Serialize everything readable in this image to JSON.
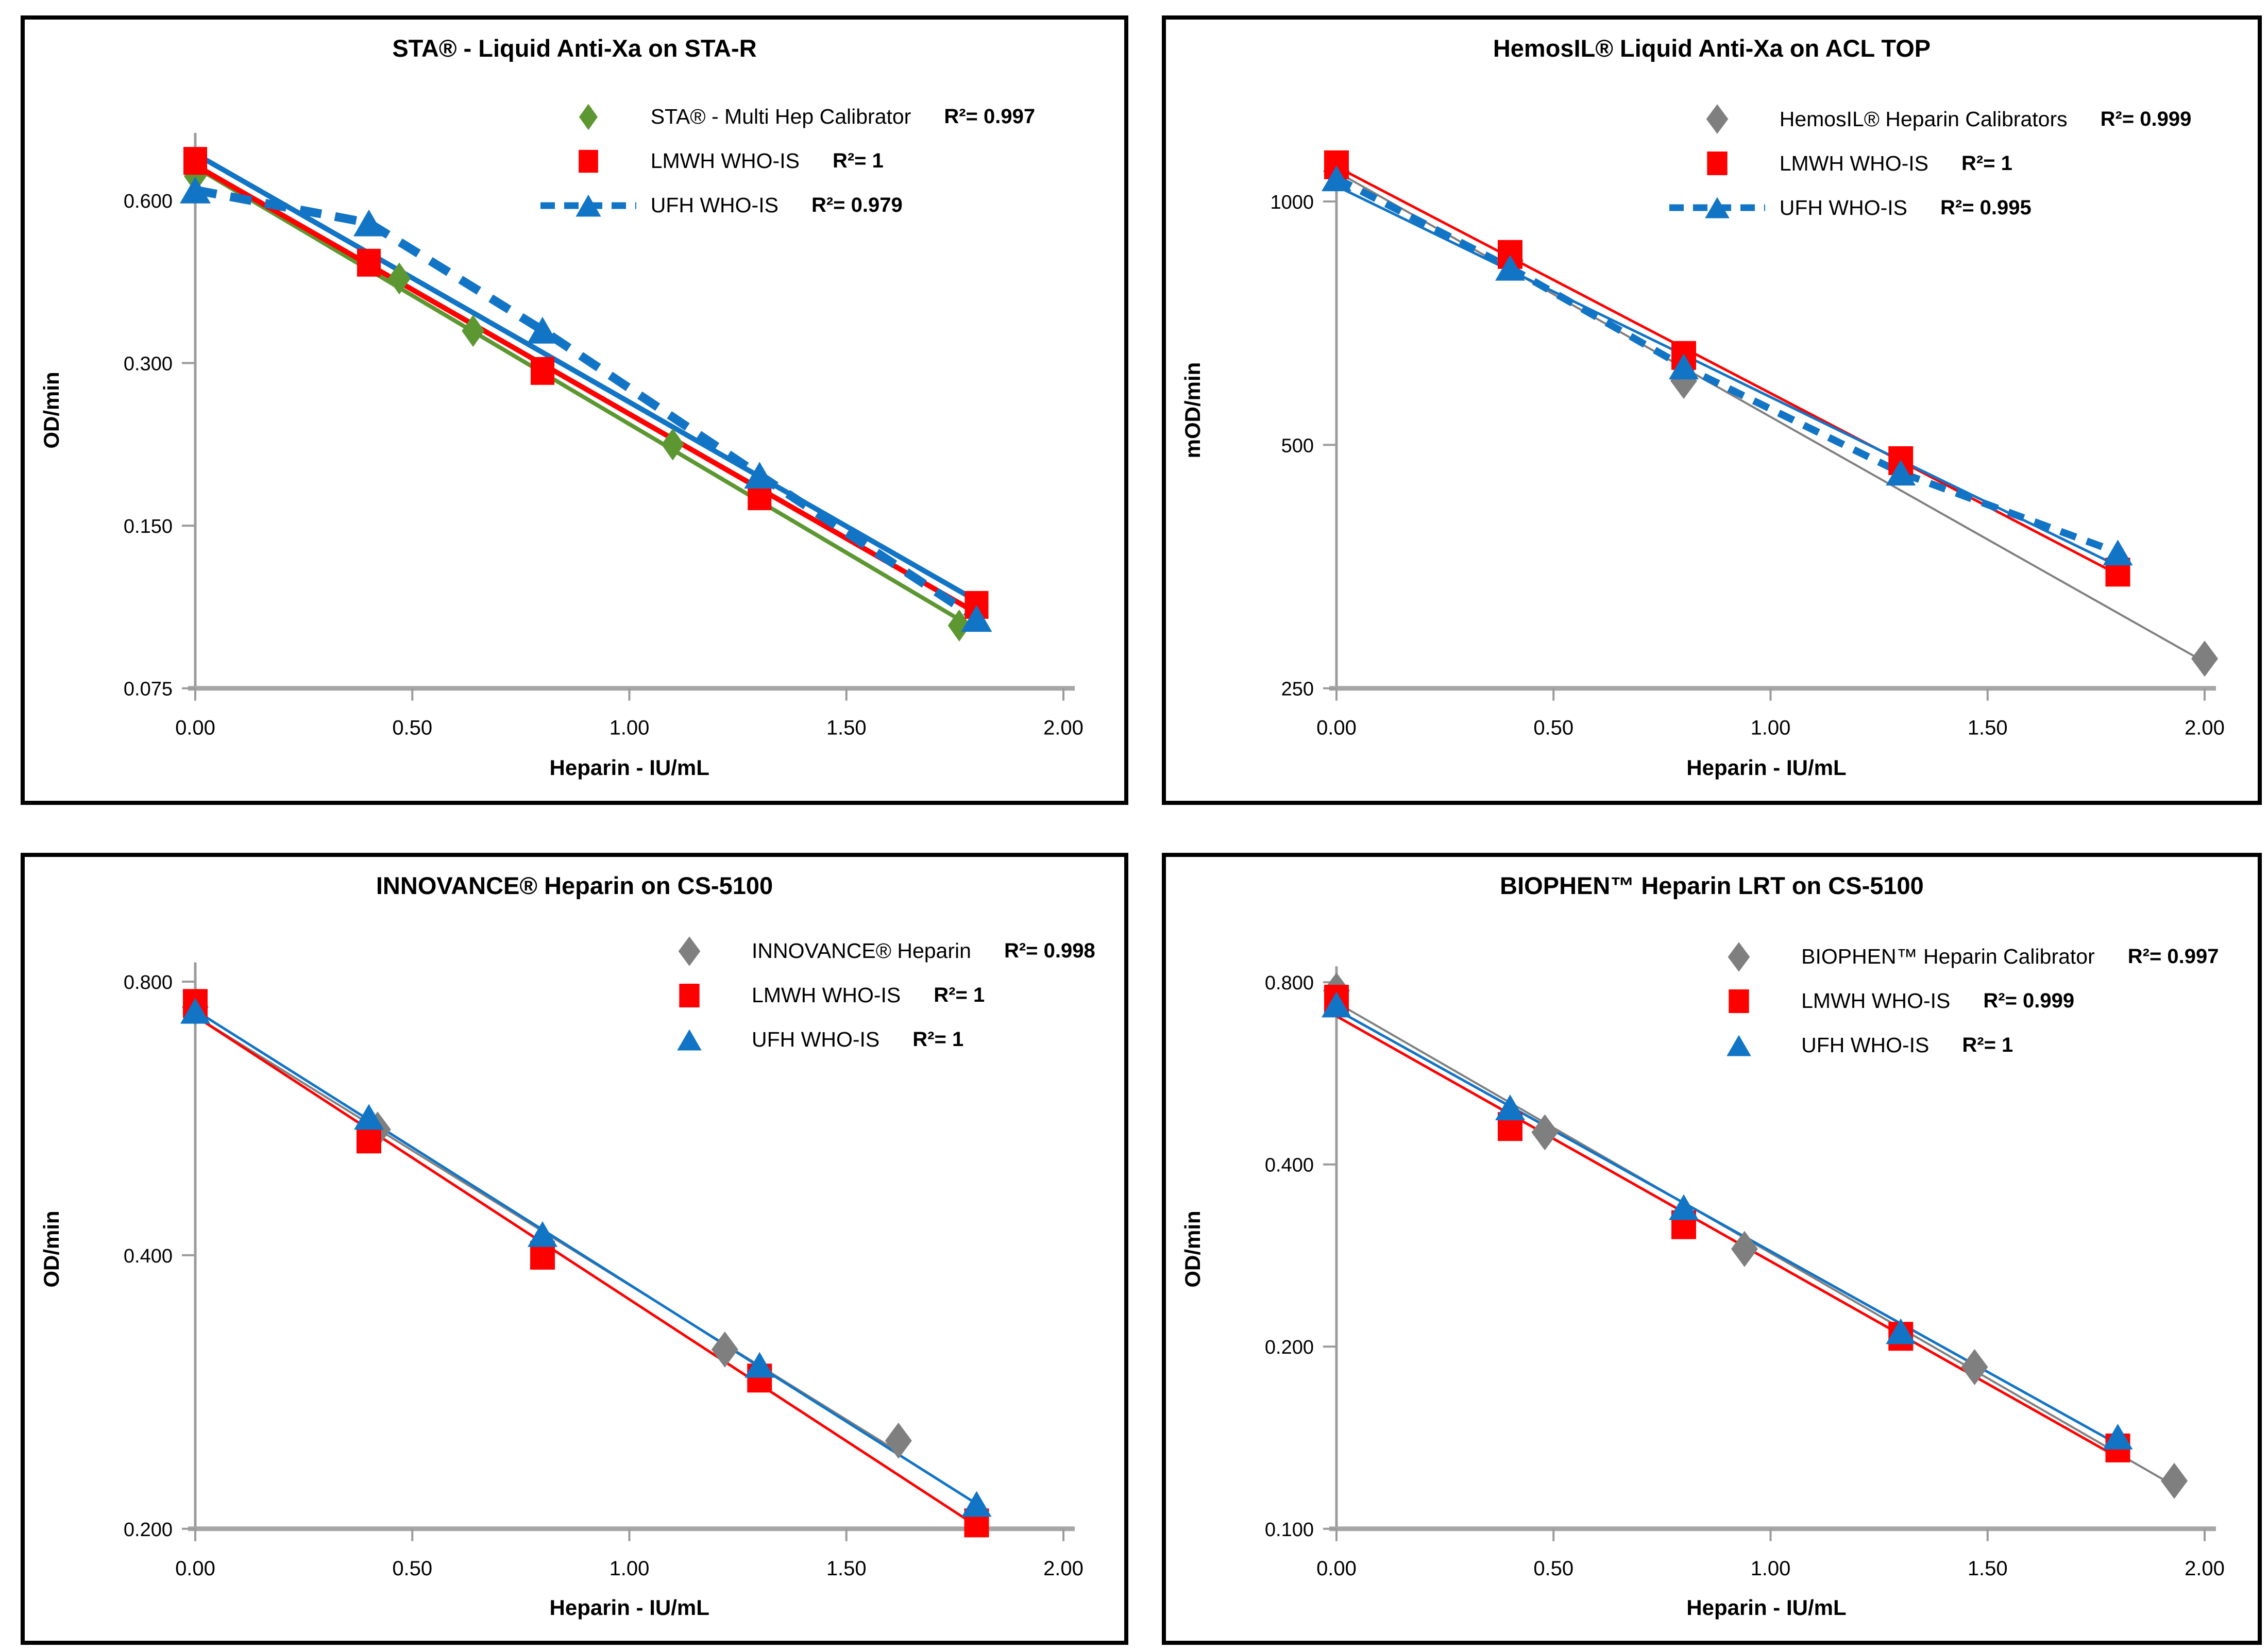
{
  "colors": {
    "red": "#fe0000",
    "blue": "#1274c5",
    "green": "#5d9732",
    "grey": "#7f7f7f",
    "axis": "#9b9b9b",
    "axis_baseline": "#a6a6a6",
    "text": "#000000",
    "panel_border": "#000000"
  },
  "chart_data": [
    {
      "type": "scatter",
      "title": "STA® - Liquid Anti-Xa on STA-R",
      "xlabel": "Heparin - IU/mL",
      "ylabel": "OD/min",
      "y_scale": "log2",
      "xlim": [
        0,
        2.0
      ],
      "ylim": [
        0.075,
        0.8
      ],
      "x_ticks": [
        {
          "v": 0.0,
          "label": "0.00"
        },
        {
          "v": 0.5,
          "label": "0.50"
        },
        {
          "v": 1.0,
          "label": "1.00"
        },
        {
          "v": 1.5,
          "label": "1.50"
        },
        {
          "v": 2.0,
          "label": "2.00"
        }
      ],
      "y_ticks": [
        {
          "v": 0.6,
          "label": "0.600"
        },
        {
          "v": 0.3,
          "label": "0.300"
        },
        {
          "v": 0.15,
          "label": "0.150"
        },
        {
          "v": 0.075,
          "label": "0.075"
        }
      ],
      "plot_top_pct": 14.5,
      "plot_bottom_pct": 85.6,
      "legend_pos": {
        "left_pct": 46.8,
        "top_pct": 9.6
      },
      "series": [
        {
          "name": "STA® - Multi Hep Calibrator",
          "r2": "R²= 0.997",
          "color_key": "green",
          "marker": "diamond",
          "marker_w": 44,
          "marker_h": 62,
          "trend_line": true,
          "dashed_connector": false,
          "line_width": 8,
          "points": [
            [
              0.0,
              0.665
            ],
            [
              0.47,
              0.43
            ],
            [
              0.64,
              0.344
            ],
            [
              1.1,
              0.212
            ],
            [
              1.76,
              0.098
            ]
          ]
        },
        {
          "name": "LMWH WHO-IS",
          "r2": "R²= 1",
          "color_key": "red",
          "marker": "square",
          "marker_w": 46,
          "marker_h": 54,
          "trend_line": true,
          "dashed_connector": false,
          "line_width": 10,
          "points": [
            [
              0.0,
              0.71
            ],
            [
              0.4,
              0.46
            ],
            [
              0.8,
              0.29
            ],
            [
              1.3,
              0.17
            ],
            [
              1.8,
              0.107
            ]
          ]
        },
        {
          "name": "UFH WHO-IS",
          "r2": "R²= 0.979",
          "color_key": "blue",
          "marker": "triangle",
          "marker_w": 60,
          "marker_h": 52,
          "trend_line": true,
          "dashed_connector": true,
          "line_width": 10,
          "dash_width": 17,
          "dash_pattern": "42 27",
          "points": [
            [
              0.0,
              0.627
            ],
            [
              0.4,
              0.545
            ],
            [
              0.8,
              0.345
            ],
            [
              1.3,
              0.186
            ],
            [
              1.8,
              0.101
            ]
          ]
        }
      ]
    },
    {
      "type": "scatter",
      "title": "HemosIL® Liquid Anti-Xa on ACL TOP",
      "xlabel": "Heparin - IU/mL",
      "ylabel": "mOD/min",
      "y_scale": "log2",
      "xlim": [
        0,
        2.0
      ],
      "ylim": [
        250,
        1150
      ],
      "x_ticks": [
        {
          "v": 0.0,
          "label": "0.00"
        },
        {
          "v": 0.5,
          "label": "0.50"
        },
        {
          "v": 1.0,
          "label": "1.00"
        },
        {
          "v": 1.5,
          "label": "1.50"
        },
        {
          "v": 2.0,
          "label": "2.00"
        }
      ],
      "y_ticks": [
        {
          "v": 1000,
          "label": "1000"
        },
        {
          "v": 500,
          "label": "500"
        },
        {
          "v": 250,
          "label": "250"
        }
      ],
      "plot_top_pct": 17.0,
      "plot_bottom_pct": 85.6,
      "legend_pos": {
        "left_pct": 46.0,
        "top_pct": 9.9
      },
      "series": [
        {
          "name": "HemosIL® Heparin Calibrators",
          "r2": "R²= 0.999",
          "color_key": "grey",
          "marker": "diamond",
          "marker_w": 52,
          "marker_h": 70,
          "trend_line": true,
          "dashed_connector": false,
          "line_width": 4,
          "points": [
            [
              0.0,
              1090
            ],
            [
              0.4,
              845
            ],
            [
              0.8,
              600
            ],
            [
              2.0,
              272
            ]
          ]
        },
        {
          "name": "LMWH WHO-IS",
          "r2": "R²= 1",
          "color_key": "red",
          "marker": "square",
          "marker_w": 48,
          "marker_h": 56,
          "trend_line": true,
          "dashed_connector": false,
          "line_width": 5,
          "points": [
            [
              0.0,
              1110
            ],
            [
              0.4,
              860
            ],
            [
              0.8,
              645
            ],
            [
              1.3,
              478
            ],
            [
              1.8,
              348
            ]
          ]
        },
        {
          "name": "UFH WHO-IS",
          "r2": "R²= 0.995",
          "color_key": "blue",
          "marker": "triangle",
          "marker_w": 58,
          "marker_h": 50,
          "trend_line": true,
          "dashed_connector": true,
          "line_width": 5,
          "dash_width": 14,
          "dash_pattern": "32 22",
          "points": [
            [
              0.0,
              1068
            ],
            [
              0.4,
              828
            ],
            [
              0.8,
              625
            ],
            [
              1.3,
              462
            ],
            [
              1.8,
              368
            ]
          ]
        }
      ]
    },
    {
      "type": "scatter",
      "title": "INNOVANCE® Heparin on CS-5100",
      "xlabel": "Heparin - IU/mL",
      "ylabel": "OD/min",
      "y_scale": "log2",
      "xlim": [
        0,
        2.0
      ],
      "ylim": [
        0.2,
        0.84
      ],
      "x_ticks": [
        {
          "v": 0.0,
          "label": "0.00"
        },
        {
          "v": 0.5,
          "label": "0.50"
        },
        {
          "v": 1.0,
          "label": "1.00"
        },
        {
          "v": 1.5,
          "label": "1.50"
        },
        {
          "v": 2.0,
          "label": "2.00"
        }
      ],
      "y_ticks": [
        {
          "v": 0.8,
          "label": "0.800"
        },
        {
          "v": 0.4,
          "label": "0.400"
        },
        {
          "v": 0.2,
          "label": "0.200"
        }
      ],
      "plot_top_pct": 13.5,
      "plot_bottom_pct": 86.0,
      "legend_pos": {
        "left_pct": 56.0,
        "top_pct": 9.2
      },
      "series": [
        {
          "name": "INNOVANCE® Heparin",
          "r2": "R²= 0.998",
          "color_key": "grey",
          "marker": "diamond",
          "marker_w": 52,
          "marker_h": 70,
          "trend_line": true,
          "dashed_connector": false,
          "line_width": 4,
          "points": [
            [
              0.0,
              0.75
            ],
            [
              0.42,
              0.55
            ],
            [
              0.8,
              0.41
            ],
            [
              1.22,
              0.315
            ],
            [
              1.62,
              0.25
            ]
          ]
        },
        {
          "name": "LMWH WHO-IS",
          "r2": "R²= 1",
          "color_key": "red",
          "marker": "square",
          "marker_w": 48,
          "marker_h": 56,
          "trend_line": true,
          "dashed_connector": false,
          "line_width": 5,
          "points": [
            [
              0.0,
              0.757
            ],
            [
              0.4,
              0.537
            ],
            [
              0.8,
              0.4
            ],
            [
              1.3,
              0.293
            ],
            [
              1.8,
              0.203
            ]
          ]
        },
        {
          "name": "UFH WHO-IS",
          "r2": "R²= 1",
          "color_key": "blue",
          "marker": "triangle",
          "marker_w": 58,
          "marker_h": 50,
          "trend_line": true,
          "dashed_connector": false,
          "line_width": 5,
          "points": [
            [
              0.0,
              0.743
            ],
            [
              0.4,
              0.568
            ],
            [
              0.8,
              0.422
            ],
            [
              1.3,
              0.303
            ],
            [
              1.8,
              0.213
            ]
          ]
        }
      ]
    },
    {
      "type": "scatter",
      "title": "BIOPHEN™ Heparin LRT on CS-5100",
      "xlabel": "Heparin - IU/mL",
      "ylabel": "OD/min",
      "y_scale": "log2",
      "xlim": [
        0,
        2.0
      ],
      "ylim": [
        0.1,
        0.85
      ],
      "x_ticks": [
        {
          "v": 0.0,
          "label": "0.00"
        },
        {
          "v": 0.5,
          "label": "0.50"
        },
        {
          "v": 1.0,
          "label": "1.00"
        },
        {
          "v": 1.5,
          "label": "1.50"
        },
        {
          "v": 2.0,
          "label": "2.00"
        }
      ],
      "y_ticks": [
        {
          "v": 0.8,
          "label": "0.800"
        },
        {
          "v": 0.4,
          "label": "0.400"
        },
        {
          "v": 0.2,
          "label": "0.200"
        },
        {
          "v": 0.1,
          "label": "0.100"
        }
      ],
      "plot_top_pct": 14.0,
      "plot_bottom_pct": 86.0,
      "legend_pos": {
        "left_pct": 48.0,
        "top_pct": 9.9
      },
      "series": [
        {
          "name": "BIOPHEN™ Heparin Calibrator",
          "r2": "R²= 0.997",
          "color_key": "grey",
          "marker": "diamond",
          "marker_w": 52,
          "marker_h": 70,
          "trend_line": true,
          "dashed_connector": false,
          "line_width": 4,
          "points": [
            [
              0.0,
              0.775
            ],
            [
              0.48,
              0.452
            ],
            [
              0.94,
              0.29
            ],
            [
              1.47,
              0.185
            ],
            [
              1.93,
              0.12
            ]
          ]
        },
        {
          "name": "LMWH WHO-IS",
          "r2": "R²= 0.999",
          "color_key": "red",
          "marker": "square",
          "marker_w": 48,
          "marker_h": 56,
          "trend_line": true,
          "dashed_connector": false,
          "line_width": 5,
          "points": [
            [
              0.0,
              0.75
            ],
            [
              0.4,
              0.462
            ],
            [
              0.8,
              0.318
            ],
            [
              1.3,
              0.208
            ],
            [
              1.8,
              0.136
            ]
          ]
        },
        {
          "name": "UFH WHO-IS",
          "r2": "R²= 1",
          "color_key": "blue",
          "marker": "triangle",
          "marker_w": 58,
          "marker_h": 50,
          "trend_line": true,
          "dashed_connector": false,
          "line_width": 5,
          "points": [
            [
              0.0,
              0.735
            ],
            [
              0.4,
              0.497
            ],
            [
              0.8,
              0.34
            ],
            [
              1.3,
              0.212
            ],
            [
              1.8,
              0.142
            ]
          ]
        }
      ]
    }
  ]
}
